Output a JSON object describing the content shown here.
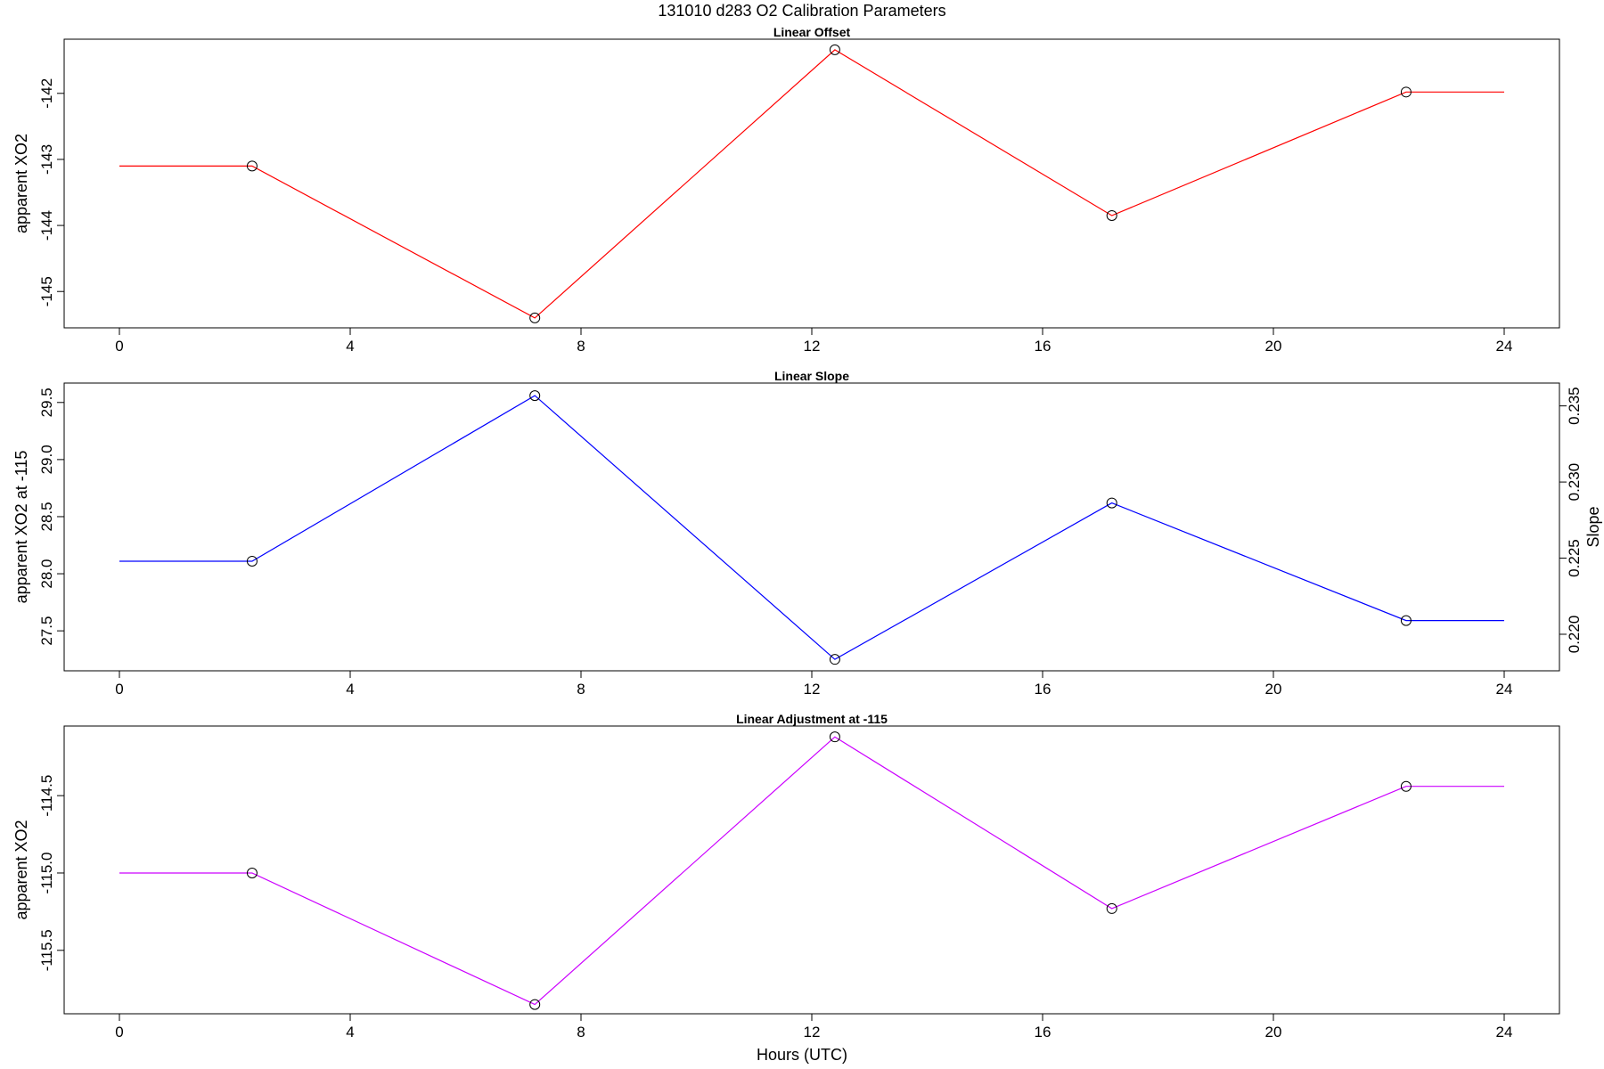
{
  "title": "131010   d283   O2 Calibration Parameters",
  "xlabel": "Hours (UTC)",
  "chart_data": [
    {
      "type": "line",
      "title": "Linear Offset",
      "xlabel": "",
      "ylabel": "apparent XO2",
      "xlim": [
        0,
        24
      ],
      "ylim": [
        -145.55,
        -141.18
      ],
      "xticks": [
        "0",
        "4",
        "8",
        "12",
        "16",
        "20",
        "24"
      ],
      "yticks": [
        "-145",
        "-144",
        "-143",
        "-142"
      ],
      "color": "#ff0000",
      "x": [
        0,
        2.3,
        7.2,
        12.4,
        17.2,
        22.3,
        24
      ],
      "y": [
        -143.1,
        -143.1,
        -145.4,
        -141.34,
        -143.85,
        -141.98,
        -141.98
      ],
      "markers": [
        false,
        true,
        true,
        true,
        true,
        true,
        false
      ]
    },
    {
      "type": "line",
      "title": "Linear Slope",
      "xlabel": "",
      "ylabel": "apparent XO2 at -115",
      "ylabel_right": "Slope",
      "xlim": [
        0,
        24
      ],
      "ylim": [
        27.15,
        29.67
      ],
      "xticks": [
        "0",
        "4",
        "8",
        "12",
        "16",
        "20",
        "24"
      ],
      "yticks": [
        "27.5",
        "28.0",
        "28.5",
        "29.0",
        "29.5"
      ],
      "yticks_right": [
        "0.220",
        "0.225",
        "0.230",
        "0.235"
      ],
      "color": "#0000ff",
      "x": [
        0,
        2.3,
        7.2,
        12.4,
        17.2,
        22.3,
        24
      ],
      "y": [
        28.11,
        28.11,
        29.56,
        27.25,
        28.62,
        27.59,
        27.59
      ],
      "markers": [
        false,
        true,
        true,
        true,
        true,
        true,
        false
      ]
    },
    {
      "type": "line",
      "title": "Linear Adjustment at -115",
      "xlabel": "Hours (UTC)",
      "ylabel": "apparent XO2",
      "xlim": [
        0,
        24
      ],
      "ylim": [
        -115.91,
        -114.05
      ],
      "xticks": [
        "0",
        "4",
        "8",
        "12",
        "16",
        "20",
        "24"
      ],
      "yticks": [
        "-115.5",
        "-115.0",
        "-114.5"
      ],
      "color": "#cc00ff",
      "x": [
        0,
        2.3,
        7.2,
        12.4,
        17.2,
        22.3,
        24
      ],
      "y": [
        -115.0,
        -115.0,
        -115.85,
        -114.12,
        -115.23,
        -114.44,
        -114.44
      ],
      "markers": [
        false,
        true,
        true,
        true,
        true,
        true,
        false
      ]
    }
  ]
}
